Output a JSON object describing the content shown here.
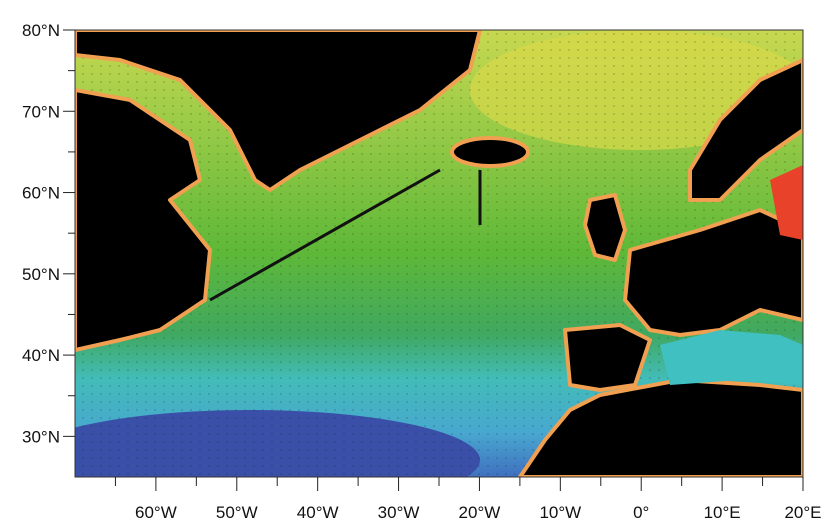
{
  "map": {
    "lat_labels": [
      {
        "deg": 80,
        "text": "80°N"
      },
      {
        "deg": 70,
        "text": "70°N"
      },
      {
        "deg": 60,
        "text": "60°N"
      },
      {
        "deg": 50,
        "text": "50°N"
      },
      {
        "deg": 40,
        "text": "40°N"
      },
      {
        "deg": 30,
        "text": "30°N"
      }
    ],
    "lon_labels": [
      {
        "deg": -60,
        "text": "60°W"
      },
      {
        "deg": -50,
        "text": "50°W"
      },
      {
        "deg": -40,
        "text": "40°W"
      },
      {
        "deg": -30,
        "text": "30°W"
      },
      {
        "deg": -20,
        "text": "20°W"
      },
      {
        "deg": -10,
        "text": "10°W"
      },
      {
        "deg": 0,
        "text": "0°"
      },
      {
        "deg": 10,
        "text": "10°E"
      },
      {
        "deg": 20,
        "text": "20°E"
      }
    ],
    "extent": {
      "lon": [
        -70,
        20
      ],
      "lat": [
        25,
        80
      ]
    },
    "colors": {
      "land": "#000000",
      "high": "#e8432a",
      "mid_high": "#f0a050",
      "mid": "#7cc040",
      "low": "#40c0c0",
      "lowest": "#3a4fa8"
    }
  }
}
